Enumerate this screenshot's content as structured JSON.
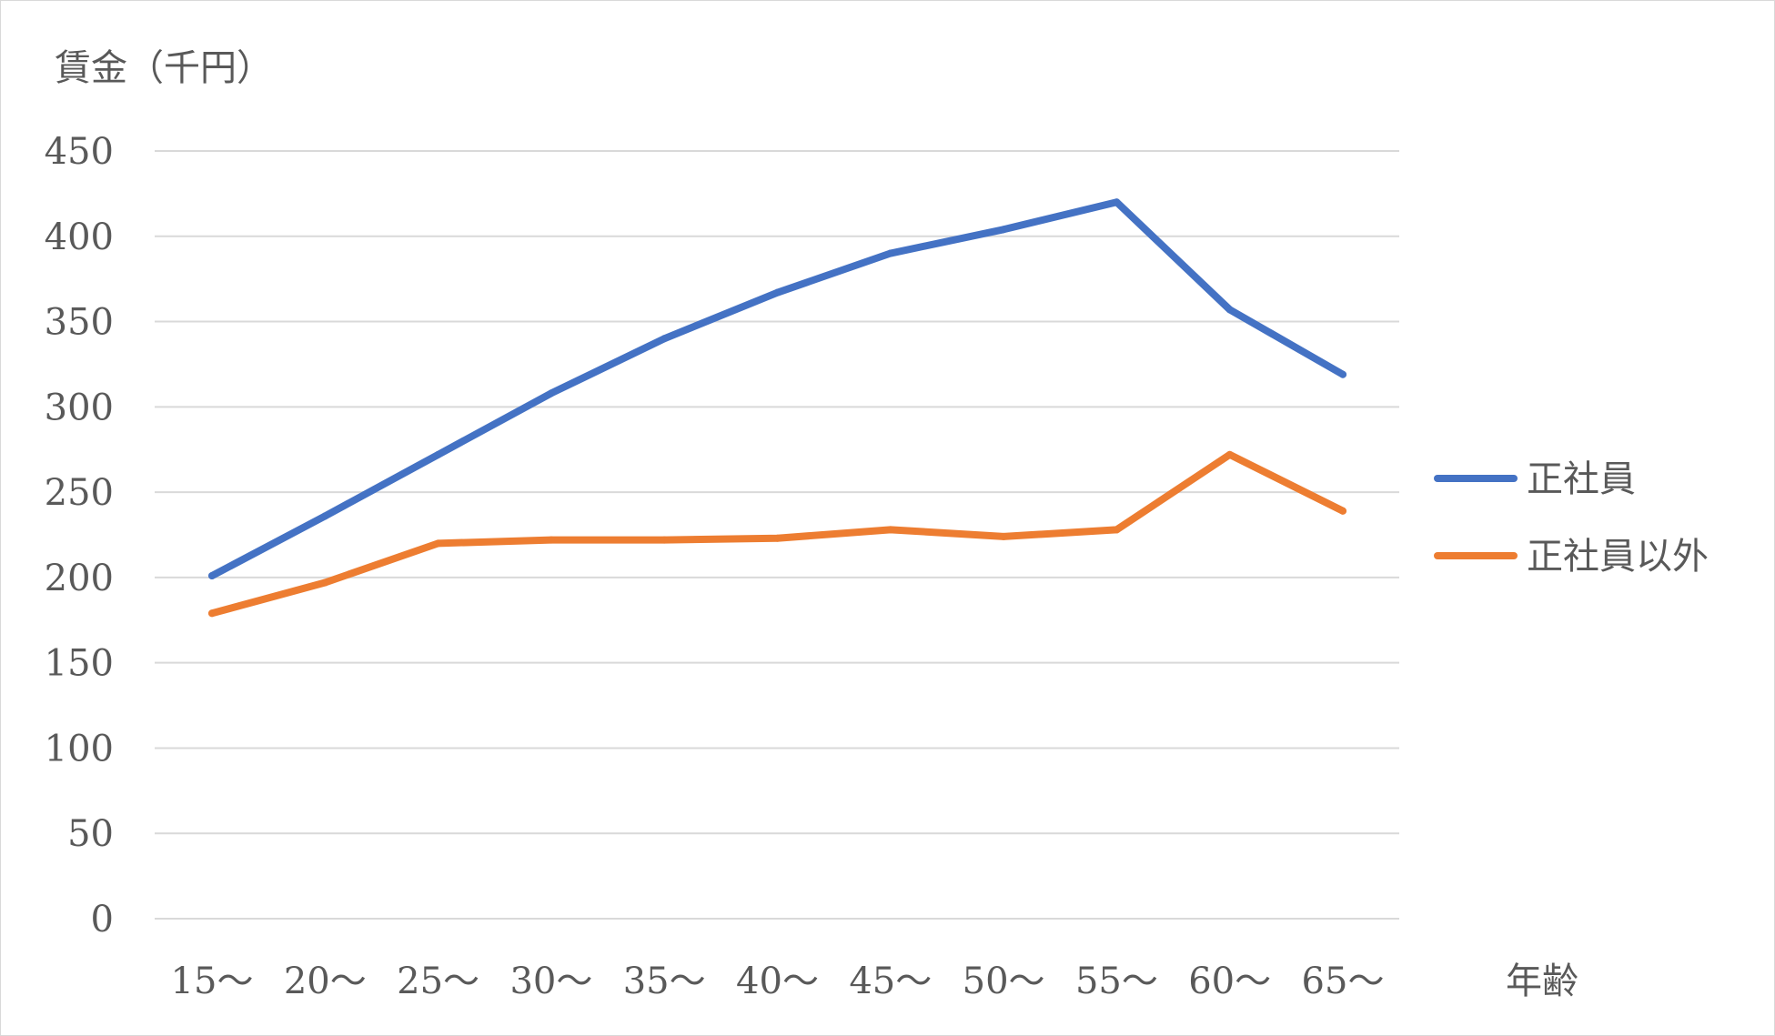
{
  "chart_data": {
    "type": "line",
    "ylabel": "賃金（千円）",
    "xlabel": "年齢",
    "categories": [
      "15～",
      "20～",
      "25～",
      "30～",
      "35～",
      "40～",
      "45～",
      "50～",
      "55～",
      "60～",
      "65～"
    ],
    "series": [
      {
        "name": "正社員",
        "color": "#4472c4",
        "values": [
          201,
          236,
          272,
          308,
          340,
          367,
          390,
          404,
          420,
          357,
          319
        ]
      },
      {
        "name": "正社員以外",
        "color": "#ed7d31",
        "values": [
          179,
          197,
          220,
          222,
          222,
          223,
          228,
          224,
          228,
          272,
          239
        ]
      }
    ],
    "ylim": [
      0,
      450
    ],
    "yticks": [
      0,
      50,
      100,
      150,
      200,
      250,
      300,
      350,
      400,
      450
    ],
    "grid": true,
    "gridline_color": "#d9d9d9",
    "legend": "right"
  }
}
